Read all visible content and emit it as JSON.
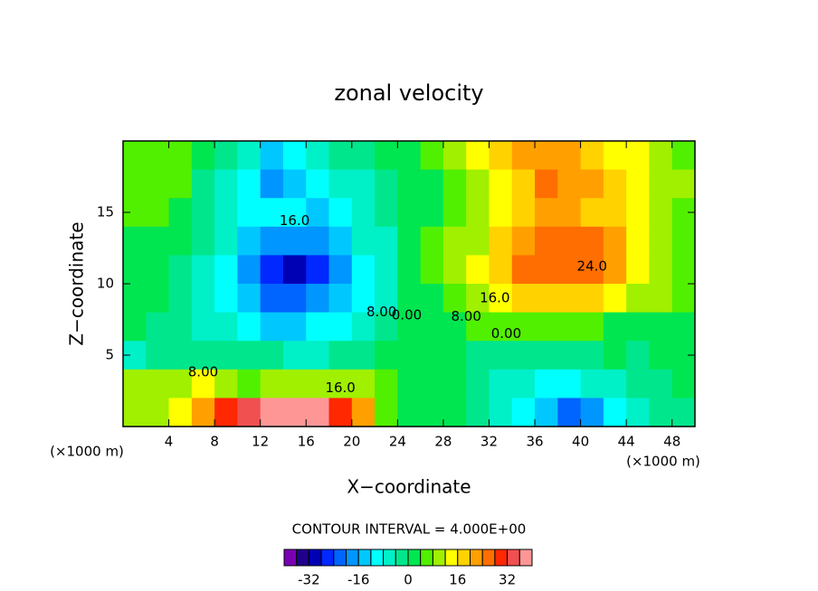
{
  "chart_data": {
    "type": "contour",
    "title": "zonal velocity",
    "xlabel": "X−coordinate",
    "ylabel": "Z−coordinate",
    "x_unit": "(×1000 m)",
    "y_unit": "(×1000 m)",
    "xlim": [
      0,
      50
    ],
    "ylim": [
      0,
      20
    ],
    "xticks": [
      4,
      8,
      12,
      16,
      20,
      24,
      28,
      32,
      36,
      40,
      44,
      48
    ],
    "yticks": [
      5,
      10,
      15
    ],
    "x": [
      1,
      3,
      5,
      7,
      9,
      11,
      13,
      15,
      17,
      19,
      21,
      23,
      25,
      27,
      29,
      31,
      33,
      35,
      37,
      39,
      41,
      43,
      45,
      47,
      49
    ],
    "y": [
      19,
      17,
      15,
      13,
      11,
      9,
      7,
      5,
      3,
      1
    ],
    "z": [
      [
        6,
        6,
        4,
        0,
        -4,
        -8,
        -14,
        -10,
        -6,
        -4,
        -2,
        0,
        2,
        4,
        8,
        12,
        16,
        20,
        22,
        20,
        18,
        14,
        12,
        8,
        6
      ],
      [
        6,
        6,
        4,
        -2,
        -6,
        -10,
        -18,
        -16,
        -10,
        -8,
        -6,
        -2,
        0,
        2,
        6,
        10,
        14,
        18,
        24,
        22,
        20,
        16,
        14,
        10,
        8
      ],
      [
        4,
        4,
        2,
        -2,
        -6,
        -10,
        -12,
        -12,
        -14,
        -10,
        -8,
        -4,
        0,
        2,
        4,
        8,
        12,
        18,
        20,
        20,
        18,
        16,
        12,
        10,
        6
      ],
      [
        2,
        2,
        0,
        -4,
        -8,
        -14,
        -18,
        -20,
        -20,
        -14,
        -8,
        -6,
        0,
        4,
        8,
        10,
        16,
        20,
        24,
        26,
        24,
        20,
        14,
        10,
        6
      ],
      [
        2,
        0,
        -2,
        -6,
        -10,
        -18,
        -26,
        -30,
        -26,
        -18,
        -10,
        -6,
        0,
        4,
        10,
        14,
        18,
        24,
        27,
        27,
        24,
        20,
        14,
        10,
        6
      ],
      [
        2,
        0,
        -2,
        -6,
        -10,
        -16,
        -22,
        -24,
        -20,
        -16,
        -10,
        -6,
        0,
        2,
        6,
        10,
        14,
        16,
        18,
        18,
        16,
        14,
        10,
        8,
        4
      ],
      [
        0,
        -2,
        -4,
        -6,
        -8,
        -10,
        -14,
        -14,
        -12,
        -10,
        -8,
        -4,
        0,
        2,
        2,
        6,
        6,
        4,
        4,
        4,
        4,
        2,
        2,
        2,
        2
      ],
      [
        -6,
        -4,
        -2,
        -2,
        -2,
        -4,
        -4,
        -6,
        -6,
        -4,
        -2,
        0,
        2,
        2,
        0,
        -2,
        -4,
        -2,
        -4,
        -2,
        -2,
        0,
        -2,
        0,
        2
      ],
      [
        10,
        8,
        10,
        12,
        8,
        6,
        8,
        10,
        10,
        8,
        10,
        4,
        2,
        2,
        0,
        -4,
        -6,
        -8,
        -10,
        -10,
        -8,
        -6,
        -4,
        -2,
        0
      ],
      [
        8,
        10,
        14,
        20,
        28,
        32,
        36,
        38,
        36,
        30,
        22,
        6,
        2,
        2,
        0,
        -4,
        -8,
        -10,
        -14,
        -22,
        -18,
        -12,
        -8,
        -4,
        -2
      ]
    ],
    "levels": [
      -40,
      -36,
      -32,
      -28,
      -24,
      -20,
      -16,
      -12,
      -8,
      -4,
      0,
      4,
      8,
      12,
      16,
      20,
      24,
      28,
      32,
      36,
      40
    ],
    "colors": [
      "#7a00b4",
      "#1e008c",
      "#0000b4",
      "#0028ff",
      "#0064ff",
      "#0096ff",
      "#00c8ff",
      "#00ffff",
      "#00f0c8",
      "#00e68c",
      "#00e650",
      "#50f000",
      "#a0f000",
      "#ffff00",
      "#ffd200",
      "#ffa000",
      "#ff6e00",
      "#ff2800",
      "#f05050",
      "#ff9696"
    ],
    "colorbar_ticks": [
      -32,
      -16,
      0,
      16,
      32
    ],
    "contour_interval": "CONTOUR INTERVAL = 4.000E+00",
    "annotations": [
      {
        "text": "16.0",
        "x": 15,
        "y": 14.4
      },
      {
        "text": "8.00",
        "x": 22.6,
        "y": 8
      },
      {
        "text": "0.00",
        "x": 24.8,
        "y": 7.8
      },
      {
        "text": "16.0",
        "x": 32.5,
        "y": 9
      },
      {
        "text": "8.00",
        "x": 30,
        "y": 7.7
      },
      {
        "text": "0.00",
        "x": 33.5,
        "y": 6.5
      },
      {
        "text": "24.0",
        "x": 41,
        "y": 11.2
      },
      {
        "text": "8.00",
        "x": 7,
        "y": 3.8
      },
      {
        "text": "16.0",
        "x": 19,
        "y": 2.7
      }
    ]
  }
}
